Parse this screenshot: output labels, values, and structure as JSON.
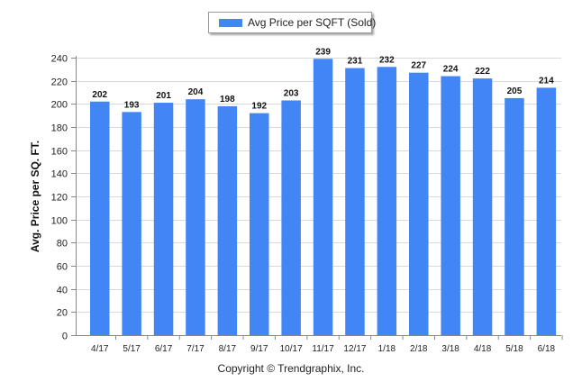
{
  "chart_data": {
    "type": "bar",
    "categories": [
      "4/17",
      "5/17",
      "6/17",
      "7/17",
      "8/17",
      "9/17",
      "10/17",
      "11/17",
      "12/17",
      "1/18",
      "2/18",
      "3/18",
      "4/18",
      "5/18",
      "6/18"
    ],
    "series": [
      {
        "name": "Avg Price per SQFT (Sold)",
        "values": [
          202,
          193,
          201,
          204,
          198,
          192,
          203,
          239,
          231,
          232,
          227,
          224,
          222,
          205,
          214
        ]
      }
    ],
    "xlabel": "",
    "ylabel": "Avg. Price per SQ. FT.",
    "ylim": [
      0,
      240
    ],
    "yticks": [
      0,
      20,
      40,
      60,
      80,
      100,
      120,
      140,
      160,
      180,
      200,
      220,
      240
    ],
    "grid": true,
    "legend_position": "top-center",
    "data_labels": true,
    "bar_color": "#4285f4"
  },
  "footer": {
    "copyright": "Copyright © Trendgraphix, Inc."
  }
}
